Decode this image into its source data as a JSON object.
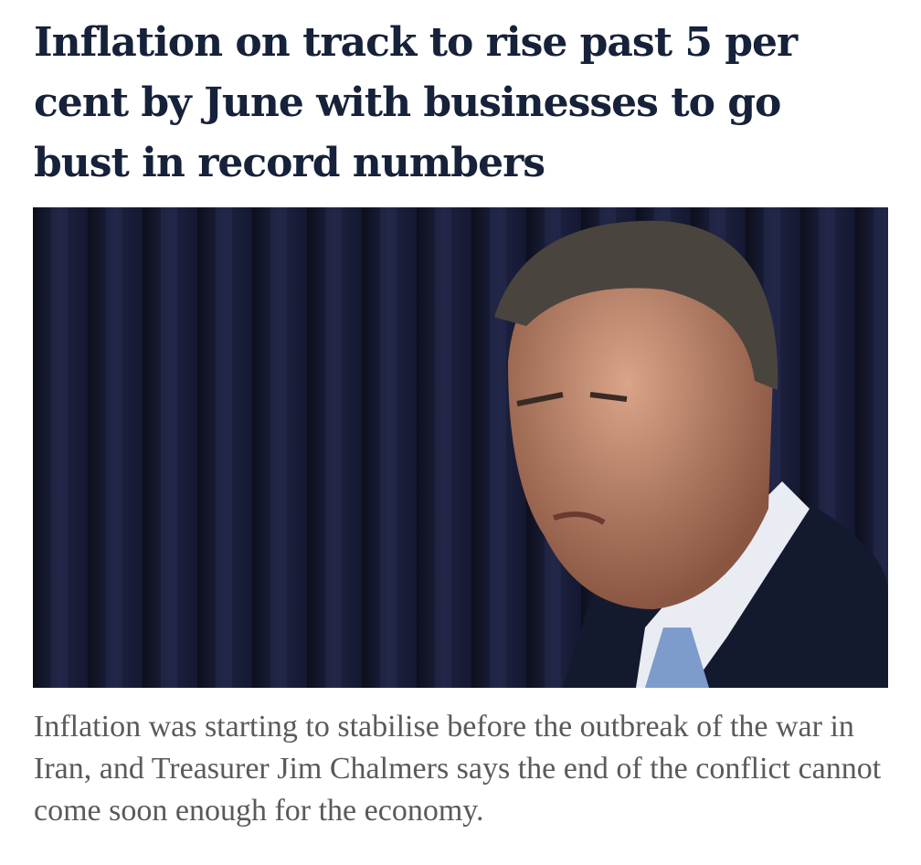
{
  "article": {
    "headline": "Inflation on track to rise past 5 per cent by June with businesses to go bust in record numbers",
    "caption": "Inflation was starting to stabilise before the outbreak of the war in Iran, and Treasurer Jim Chalmers says the end of the conflict cannot come soon enough for the economy."
  }
}
